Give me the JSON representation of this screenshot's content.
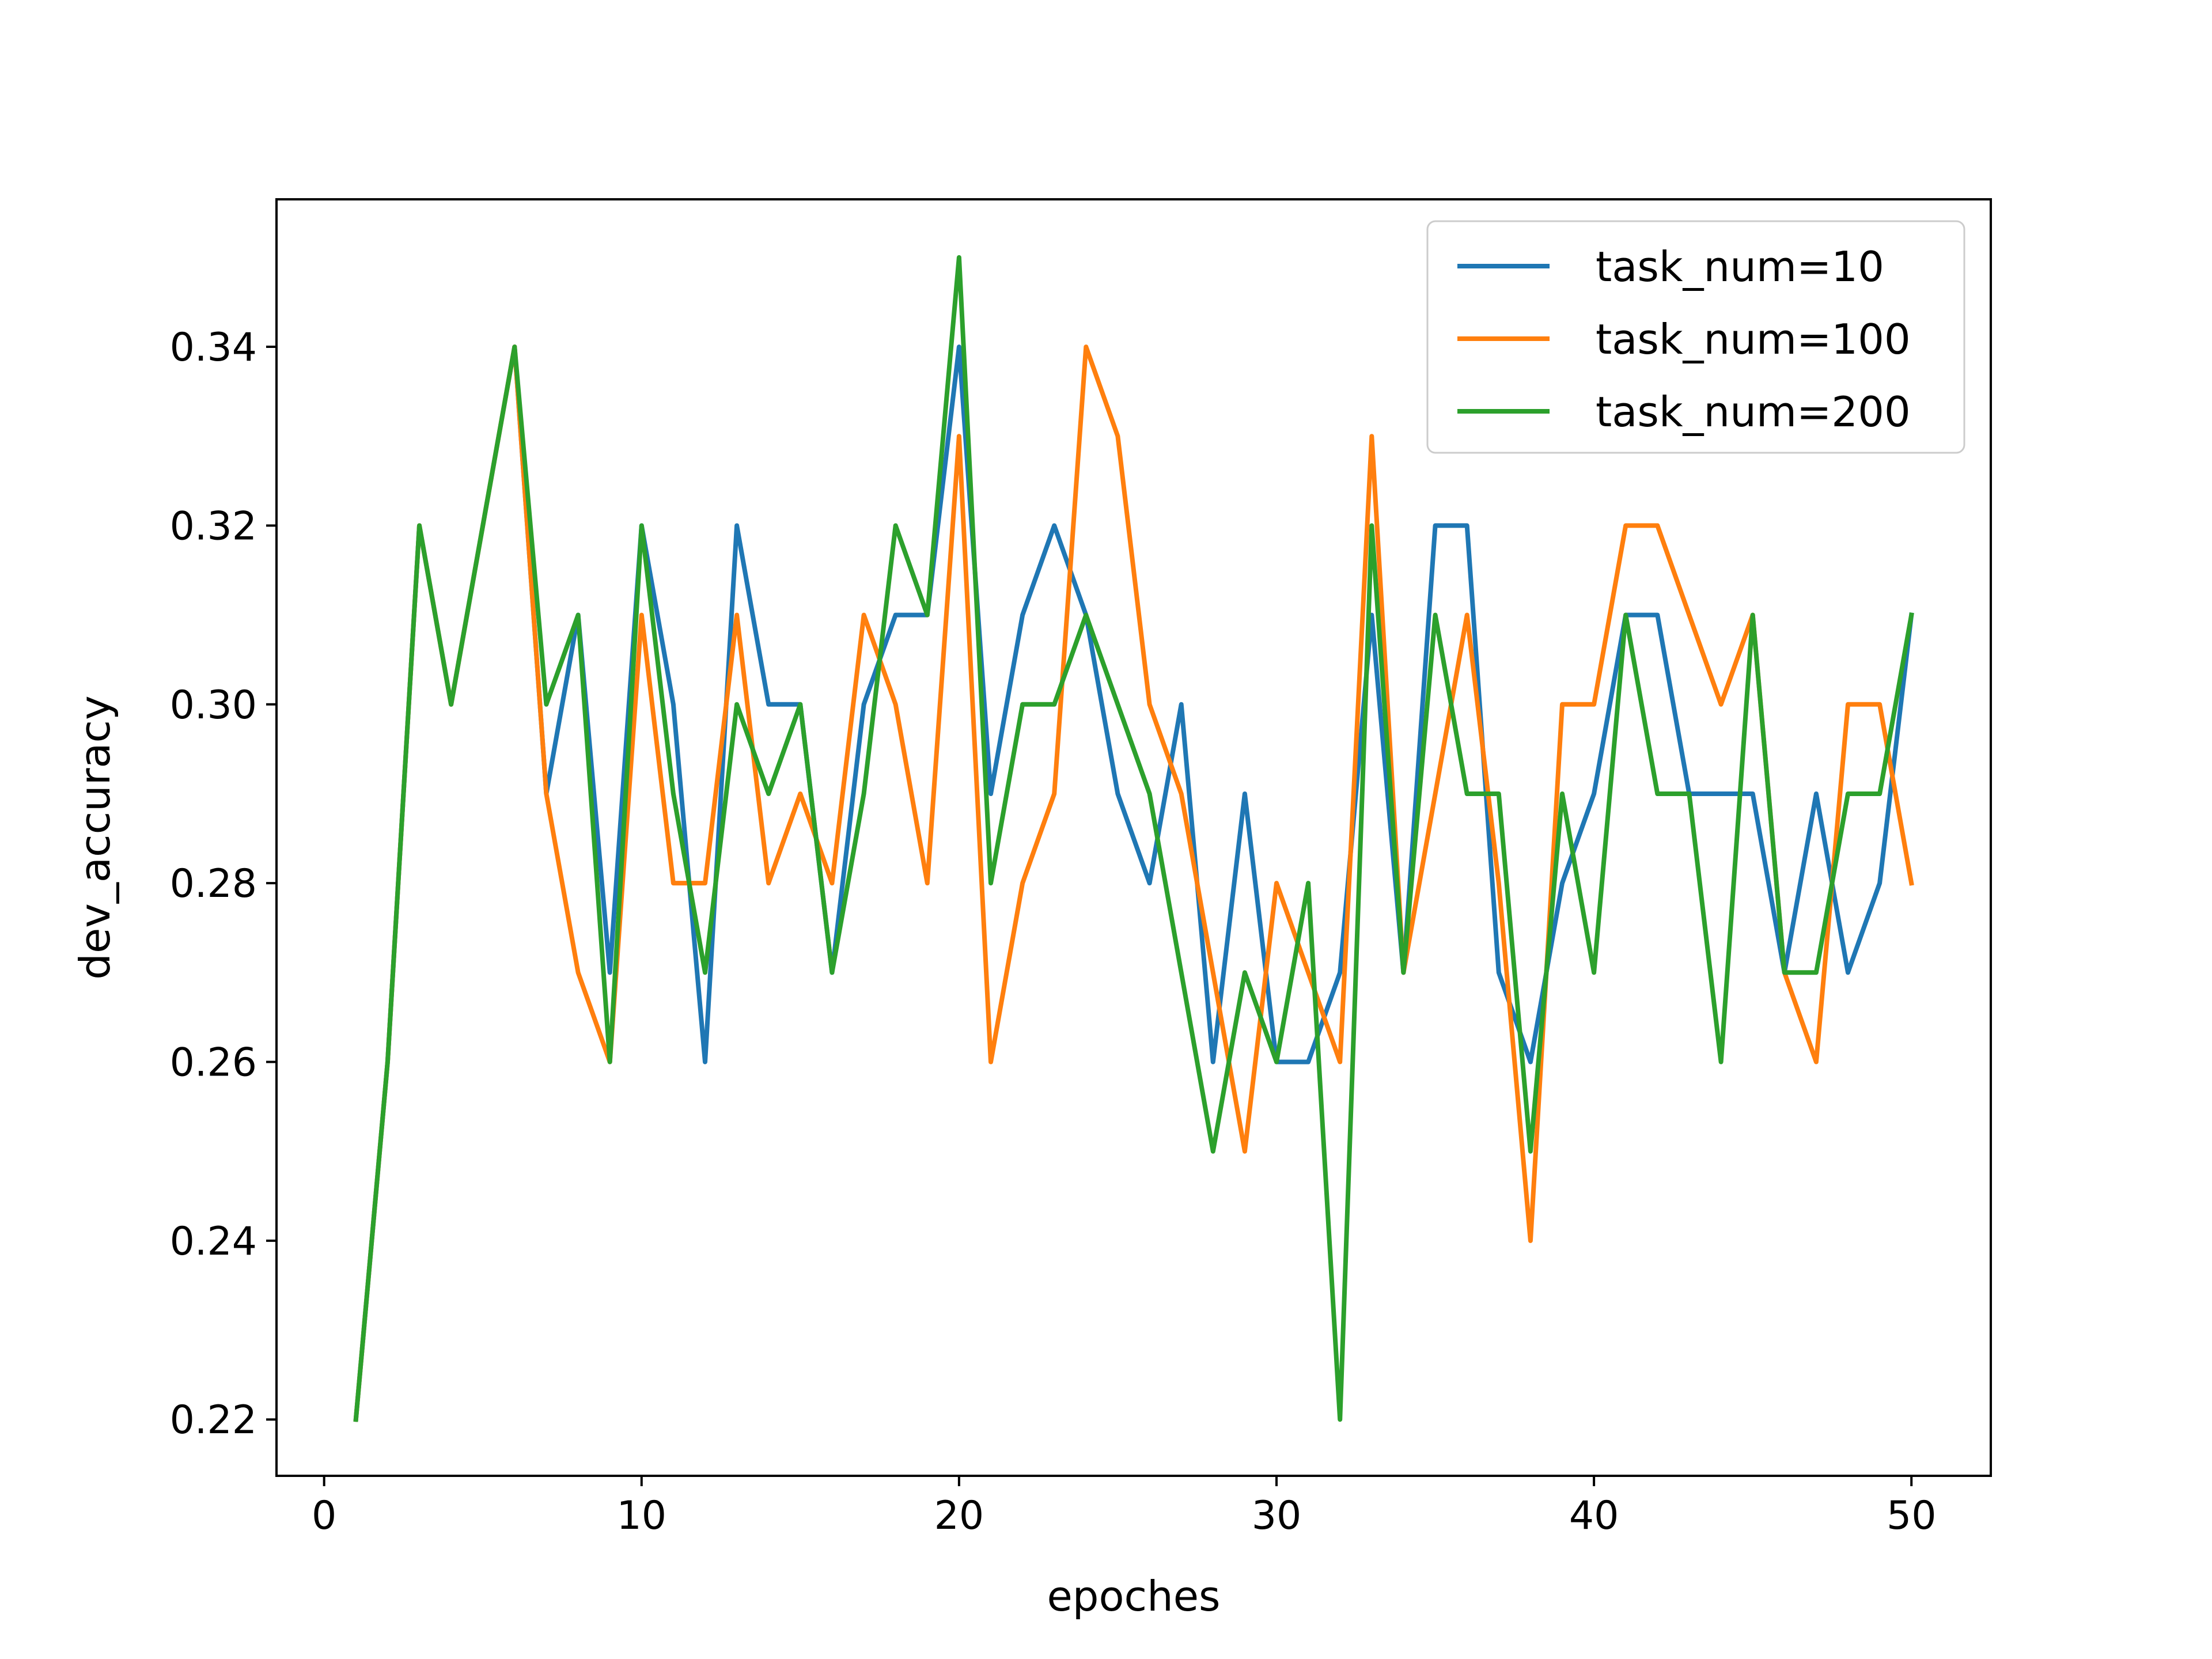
{
  "chart_data": {
    "type": "line",
    "title": "",
    "xlabel": "epoches",
    "ylabel": "dev_accuracy",
    "xlim": [
      -1.5,
      52.5
    ],
    "ylim": [
      0.2137,
      0.3565
    ],
    "xticks": [
      0,
      10,
      20,
      30,
      40,
      50
    ],
    "xtick_labels": [
      "0",
      "10",
      "20",
      "30",
      "40",
      "50"
    ],
    "yticks": [
      0.22,
      0.24,
      0.26,
      0.28,
      0.3,
      0.32,
      0.34
    ],
    "ytick_labels": [
      "0.22",
      "0.24",
      "0.26",
      "0.28",
      "0.30",
      "0.32",
      "0.34"
    ],
    "grid": false,
    "legend_position": "top-right",
    "x": [
      1,
      2,
      3,
      4,
      5,
      6,
      7,
      8,
      9,
      10,
      11,
      12,
      13,
      14,
      15,
      16,
      17,
      18,
      19,
      20,
      21,
      22,
      23,
      24,
      25,
      26,
      27,
      28,
      29,
      30,
      31,
      32,
      33,
      34,
      35,
      36,
      37,
      38,
      39,
      40,
      41,
      42,
      43,
      44,
      45,
      46,
      47,
      48,
      49,
      50
    ],
    "series": [
      {
        "name": "task_num=10",
        "color": "#1f77b4",
        "values": [
          0.22,
          0.26,
          0.32,
          0.3,
          0.32,
          0.34,
          0.29,
          0.31,
          0.27,
          0.32,
          0.3,
          0.26,
          0.32,
          0.3,
          0.3,
          0.27,
          0.3,
          0.31,
          0.31,
          0.34,
          0.29,
          0.31,
          0.32,
          0.31,
          0.29,
          0.28,
          0.3,
          0.26,
          0.29,
          0.26,
          0.26,
          0.27,
          0.31,
          0.27,
          0.32,
          0.32,
          0.27,
          0.26,
          0.28,
          0.29,
          0.31,
          0.31,
          0.29,
          0.29,
          0.29,
          0.27,
          0.29,
          0.27,
          0.28,
          0.31
        ]
      },
      {
        "name": "task_num=100",
        "color": "#ff7f0e",
        "values": [
          0.22,
          0.26,
          0.32,
          0.3,
          0.32,
          0.34,
          0.29,
          0.27,
          0.26,
          0.31,
          0.28,
          0.28,
          0.31,
          0.28,
          0.29,
          0.28,
          0.31,
          0.3,
          0.28,
          0.33,
          0.26,
          0.28,
          0.29,
          0.34,
          0.33,
          0.3,
          0.29,
          0.27,
          0.25,
          0.28,
          0.27,
          0.26,
          0.33,
          0.27,
          0.29,
          0.31,
          0.28,
          0.24,
          0.3,
          0.3,
          0.32,
          0.32,
          0.31,
          0.3,
          0.31,
          0.27,
          0.26,
          0.3,
          0.3,
          0.28
        ]
      },
      {
        "name": "task_num=200",
        "color": "#2ca02c",
        "values": [
          0.22,
          0.26,
          0.32,
          0.3,
          0.32,
          0.34,
          0.3,
          0.31,
          0.26,
          0.32,
          0.29,
          0.27,
          0.3,
          0.29,
          0.3,
          0.27,
          0.29,
          0.32,
          0.31,
          0.35,
          0.28,
          0.3,
          0.3,
          0.31,
          0.3,
          0.29,
          0.27,
          0.25,
          0.27,
          0.26,
          0.28,
          0.22,
          0.32,
          0.27,
          0.31,
          0.29,
          0.29,
          0.25,
          0.29,
          0.27,
          0.31,
          0.29,
          0.29,
          0.26,
          0.31,
          0.27,
          0.27,
          0.29,
          0.29,
          0.31
        ]
      }
    ]
  }
}
